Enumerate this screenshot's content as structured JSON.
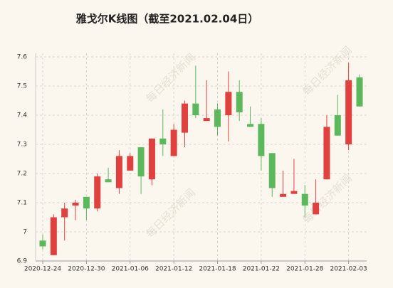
{
  "chart_data": {
    "type": "candlestick",
    "title": "雅戈尔K线图（截至2021.02.04日）",
    "watermark": "每日经济新闻",
    "categories": [
      "2020-12-24",
      null,
      null,
      null,
      "2020-12-30",
      null,
      null,
      null,
      "2021-01-06",
      null,
      null,
      null,
      "2021-01-12",
      null,
      null,
      null,
      "2021-01-18",
      null,
      null,
      null,
      "2021-01-22",
      null,
      null,
      null,
      "2021-01-28",
      null,
      null,
      null,
      "2021-02-03",
      null
    ],
    "open": [
      6.97,
      6.92,
      7.05,
      7.09,
      7.12,
      7.08,
      7.18,
      7.15,
      7.21,
      7.29,
      7.18,
      7.32,
      7.26,
      7.34,
      7.44,
      7.38,
      7.42,
      7.4,
      7.48,
      7.37,
      7.37,
      7.27,
      7.12,
      7.13,
      7.13,
      7.06,
      7.18,
      7.4,
      7.3,
      7.53
    ],
    "high": [
      6.99,
      7.06,
      7.1,
      7.11,
      7.12,
      7.2,
      7.22,
      7.28,
      7.27,
      7.29,
      7.32,
      7.42,
      7.37,
      7.45,
      7.57,
      7.52,
      7.44,
      7.55,
      7.52,
      7.43,
      7.39,
      7.27,
      7.21,
      7.25,
      7.16,
      7.18,
      7.4,
      7.47,
      7.58,
      7.54
    ],
    "low": [
      6.94,
      6.92,
      6.97,
      7.04,
      7.04,
      7.07,
      7.17,
      7.13,
      7.21,
      7.13,
      7.16,
      7.26,
      7.26,
      7.29,
      7.39,
      7.38,
      7.33,
      7.31,
      7.38,
      7.36,
      7.21,
      7.12,
      7.12,
      7.13,
      7.05,
      7.06,
      7.18,
      7.33,
      7.28,
      7.43
    ],
    "close": [
      6.95,
      7.05,
      7.08,
      7.1,
      7.08,
      7.19,
      7.17,
      7.26,
      7.26,
      7.19,
      7.32,
      7.3,
      7.35,
      7.44,
      7.4,
      7.39,
      7.36,
      7.48,
      7.41,
      7.36,
      7.26,
      7.15,
      7.13,
      7.14,
      7.09,
      7.1,
      7.36,
      7.33,
      7.52,
      7.43
    ],
    "up_color": "#e0413e",
    "down_color": "#5cb85c",
    "ylim": [
      6.9,
      7.6
    ],
    "yticks": [
      6.9,
      7,
      7.1,
      7.2,
      7.3,
      7.4,
      7.5,
      7.6
    ],
    "grid": true
  }
}
